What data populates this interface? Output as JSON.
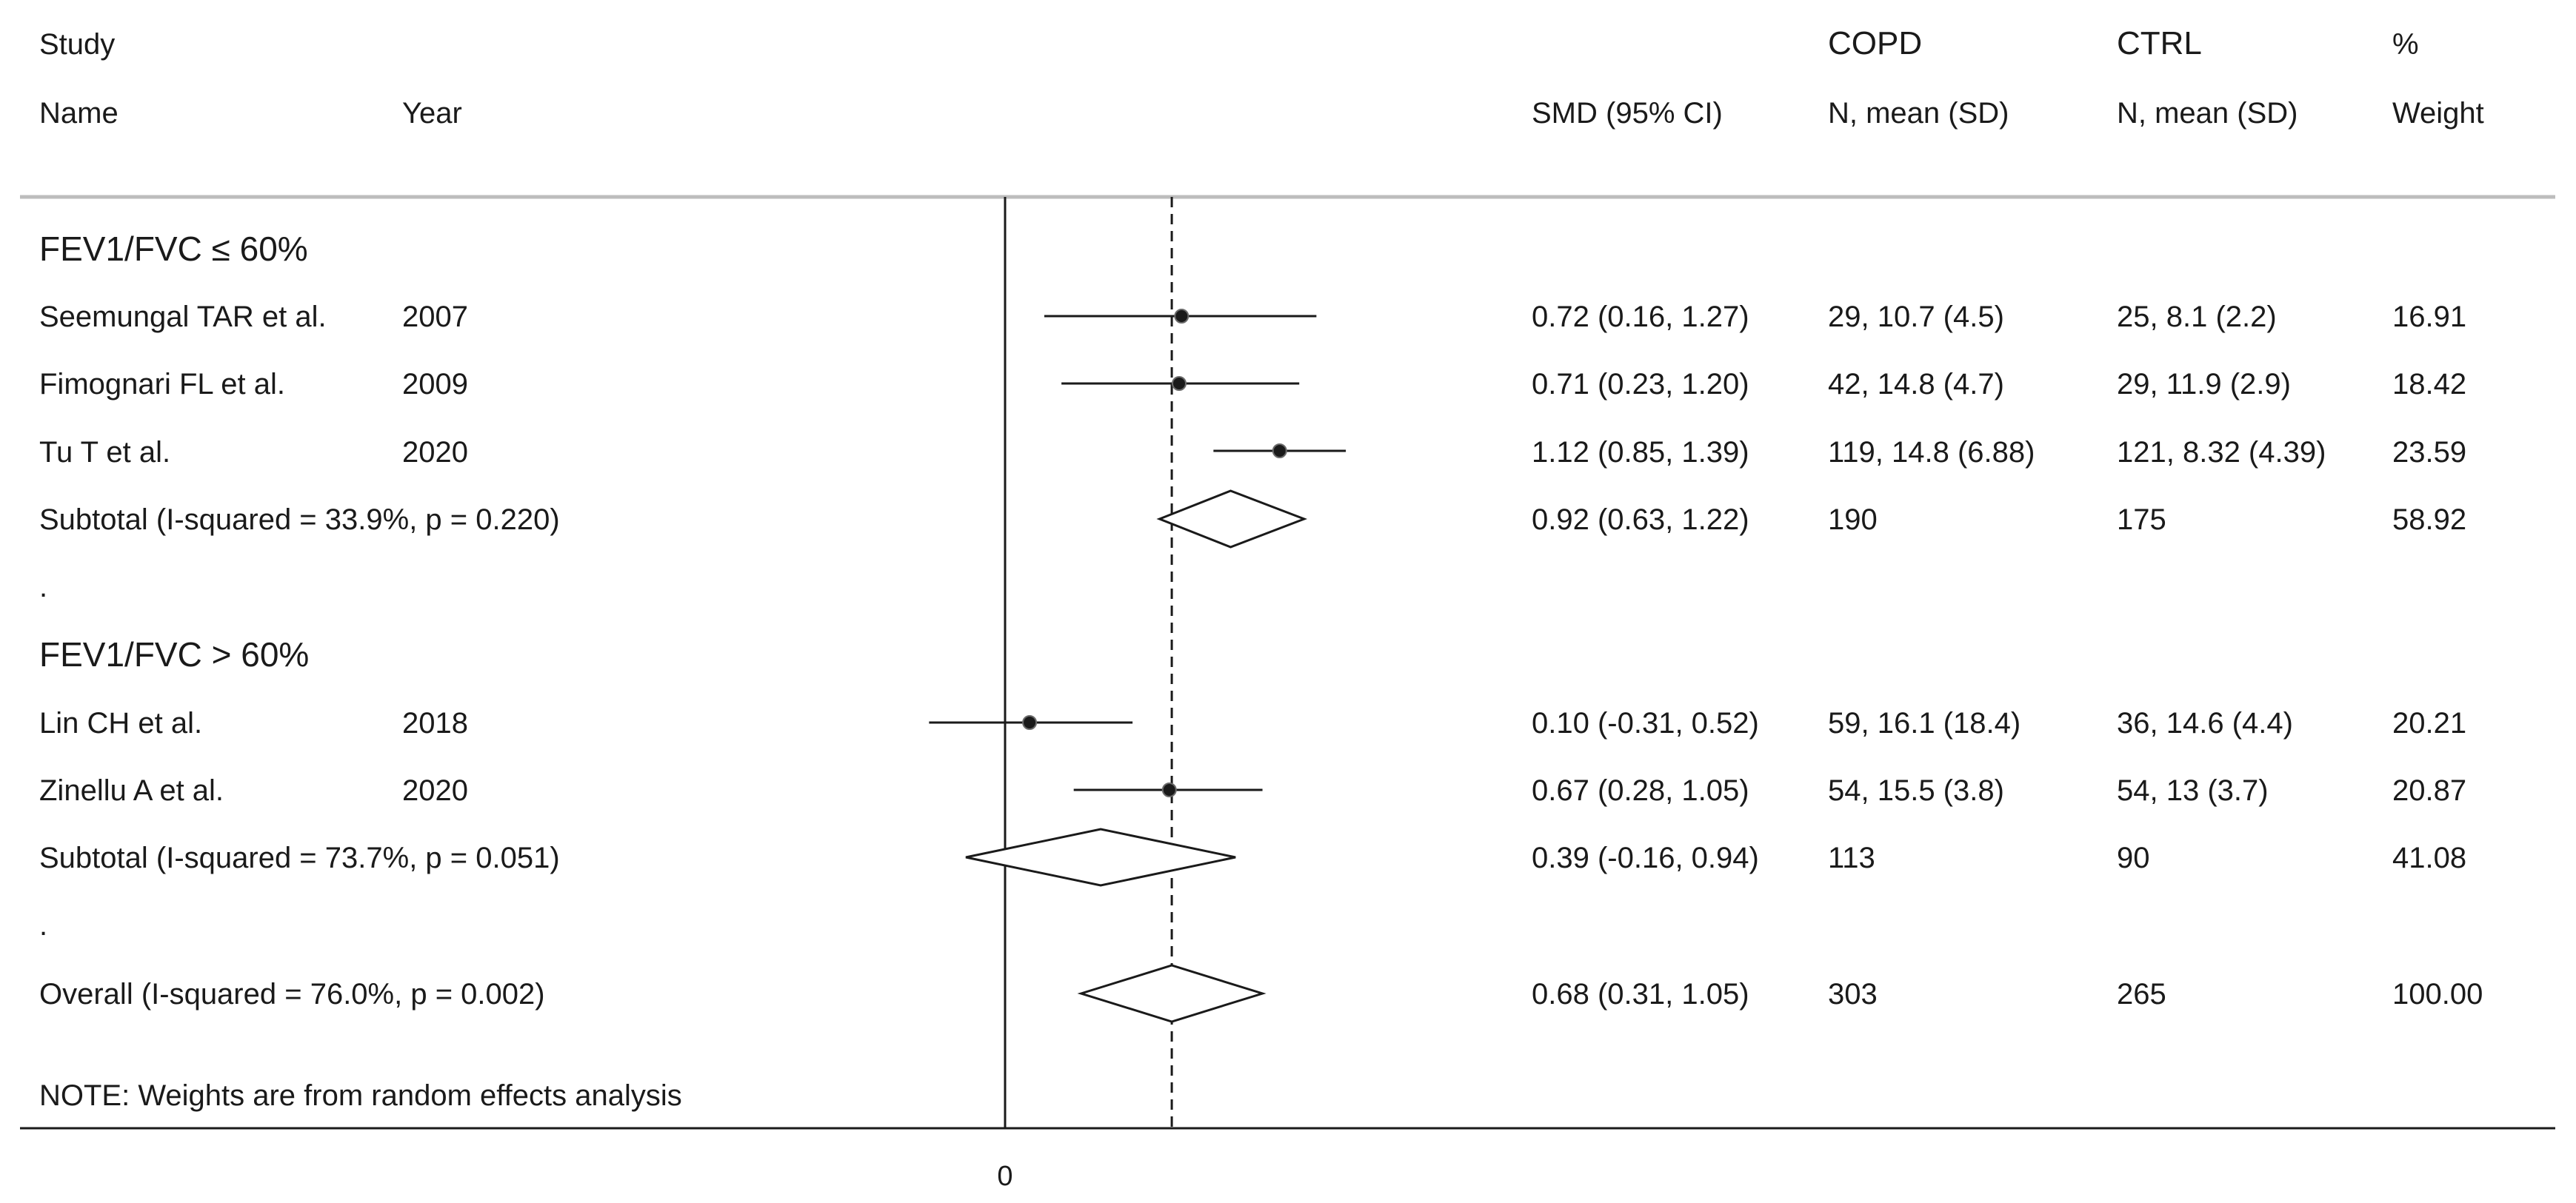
{
  "headers": {
    "study_line1": "Study",
    "study_line2": "Name",
    "year": "Year",
    "smd": "SMD (95% CI)",
    "copd_line1": "COPD",
    "copd_line2": "N, mean (SD)",
    "ctrl_line1": "CTRL",
    "ctrl_line2": "N, mean (SD)",
    "weight_line1": "%",
    "weight_line2": "Weight"
  },
  "groups": [
    {
      "title": "FEV1/FVC ≤ 60%",
      "studies": [
        {
          "name": "Seemungal TAR et al.",
          "year": "2007",
          "smd_text": "0.72 (0.16, 1.27)",
          "copd": "29, 10.7 (4.5)",
          "ctrl": "25, 8.1 (2.2)",
          "weight": "16.91"
        },
        {
          "name": "Fimognari FL et al.",
          "year": "2009",
          "smd_text": "0.71 (0.23, 1.20)",
          "copd": "42, 14.8 (4.7)",
          "ctrl": "29, 11.9 (2.9)",
          "weight": "18.42"
        },
        {
          "name": "Tu T et al.",
          "year": "2020",
          "smd_text": "1.12 (0.85, 1.39)",
          "copd": "119, 14.8 (6.88)",
          "ctrl": "121, 8.32 (4.39)",
          "weight": "23.59"
        }
      ],
      "subtotal": {
        "label": "Subtotal  (I-squared = 33.9%, p = 0.220)",
        "smd_text": "0.92 (0.63, 1.22)",
        "copd": "190",
        "ctrl": "175",
        "weight": "58.92"
      }
    },
    {
      "title": "FEV1/FVC > 60%",
      "studies": [
        {
          "name": "Lin CH et al.",
          "year": "2018",
          "smd_text": "0.10 (-0.31, 0.52)",
          "copd": "59, 16.1 (18.4)",
          "ctrl": "36, 14.6 (4.4)",
          "weight": "20.21"
        },
        {
          "name": "Zinellu A et al.",
          "year": "2020",
          "smd_text": "0.67 (0.28, 1.05)",
          "copd": "54, 15.5 (3.8)",
          "ctrl": "54, 13 (3.7)",
          "weight": "20.87"
        }
      ],
      "subtotal": {
        "label": "Subtotal  (I-squared = 73.7%, p = 0.051)",
        "smd_text": "0.39 (-0.16, 0.94)",
        "copd": "113",
        "ctrl": "90",
        "weight": "41.08"
      }
    }
  ],
  "separator_dot": ".",
  "overall": {
    "label": "Overall  (I-squared = 76.0%, p = 0.002)",
    "smd_text": "0.68 (0.31, 1.05)",
    "copd": "303",
    "ctrl": "265",
    "weight": "100.00"
  },
  "note": "NOTE: Weights are from random effects analysis",
  "colors": {
    "ink": "#1a1a1a",
    "separator": "#bdbdbd",
    "background": "#ffffff"
  },
  "chart_data": {
    "type": "forest",
    "xlabel": "",
    "xticks": [
      "0"
    ],
    "xlim": [
      -0.31,
      1.39
    ],
    "null_line": 0,
    "overall_line": 0.68,
    "studies": [
      {
        "name": "Seemungal TAR et al.",
        "year": "2007",
        "group": "FEV1/FVC ≤ 60%",
        "smd": 0.72,
        "lower": 0.16,
        "upper": 1.27,
        "weight": 16.91
      },
      {
        "name": "Fimognari FL et al.",
        "year": "2009",
        "group": "FEV1/FVC ≤ 60%",
        "smd": 0.71,
        "lower": 0.23,
        "upper": 1.2,
        "weight": 18.42
      },
      {
        "name": "Tu T et al.",
        "year": "2020",
        "group": "FEV1/FVC ≤ 60%",
        "smd": 1.12,
        "lower": 0.85,
        "upper": 1.39,
        "weight": 23.59
      },
      {
        "name": "Lin CH et al.",
        "year": "2018",
        "group": "FEV1/FVC > 60%",
        "smd": 0.1,
        "lower": -0.31,
        "upper": 0.52,
        "weight": 20.21
      },
      {
        "name": "Zinellu A et al.",
        "year": "2020",
        "group": "FEV1/FVC > 60%",
        "smd": 0.67,
        "lower": 0.28,
        "upper": 1.05,
        "weight": 20.87
      }
    ],
    "pooled": [
      {
        "label": "Subtotal FEV1/FVC ≤ 60%",
        "smd": 0.92,
        "lower": 0.63,
        "upper": 1.22,
        "weight": 58.92
      },
      {
        "label": "Subtotal FEV1/FVC > 60%",
        "smd": 0.39,
        "lower": -0.16,
        "upper": 0.94,
        "weight": 41.08
      },
      {
        "label": "Overall",
        "smd": 0.68,
        "lower": 0.31,
        "upper": 1.05,
        "weight": 100.0
      }
    ]
  }
}
